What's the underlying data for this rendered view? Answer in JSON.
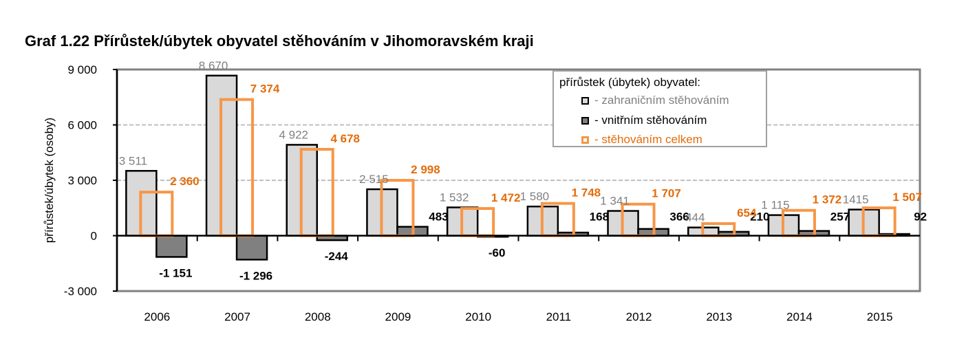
{
  "title": "Graf 1.22 Přírůstek/úbytek obyvatel stěhováním v Jihomoravském kraji",
  "legend": {
    "header": "přírůstek (úbytek) obyvatel:",
    "items": [
      {
        "label": "- zahraničním stěhováním",
        "color": "#d9d9d9",
        "text_color": "#808080"
      },
      {
        "label": "- vnitřním stěhováním",
        "color": "#808080",
        "text_color": "#000000"
      },
      {
        "label": "- stěhováním celkem",
        "color": "#f79646",
        "text_color": "#e46c0a"
      }
    ]
  },
  "chart_data": {
    "type": "bar",
    "title": "Graf 1.22 Přírůstek/úbytek obyvatel stěhováním v Jihomoravském kraji",
    "xlabel": "",
    "ylabel": "přírůstek/úbytek (osoby)",
    "ylim": [
      -3000,
      9000
    ],
    "yticks": [
      -3000,
      0,
      3000,
      6000,
      9000
    ],
    "ytick_labels": [
      "-3 000",
      "0",
      "3 000",
      "6 000",
      "9 000"
    ],
    "grid": true,
    "legend_position": "top-right",
    "categories": [
      "2006",
      "2007",
      "2008",
      "2009",
      "2010",
      "2011",
      "2012",
      "2013",
      "2014",
      "2015"
    ],
    "series": [
      {
        "name": "- zahraničním stěhováním",
        "values": [
          3511,
          8670,
          4922,
          2515,
          1532,
          1580,
          1341,
          444,
          1115,
          1415
        ],
        "labels": [
          "3 511",
          "8 670",
          "4 922",
          "2 515",
          "1 532",
          "1 580",
          "1 341",
          "444",
          "1 115",
          "1415"
        ]
      },
      {
        "name": "- vnitřním stěhováním",
        "values": [
          -1151,
          -1296,
          -244,
          483,
          -60,
          168,
          366,
          210,
          257,
          92
        ],
        "labels": [
          "-1 151",
          "-1 296",
          "-244",
          "483",
          "-60",
          "168",
          "366",
          "210",
          "257",
          "92"
        ]
      },
      {
        "name": "- stěhováním celkem",
        "values": [
          2360,
          7374,
          4678,
          2998,
          1472,
          1748,
          1707,
          654,
          1372,
          1507
        ],
        "labels": [
          "2 360",
          "7 374",
          "4 678",
          "2 998",
          "1 472",
          "1 748",
          "1 707",
          "654",
          "1 372",
          "1 507"
        ]
      }
    ]
  }
}
